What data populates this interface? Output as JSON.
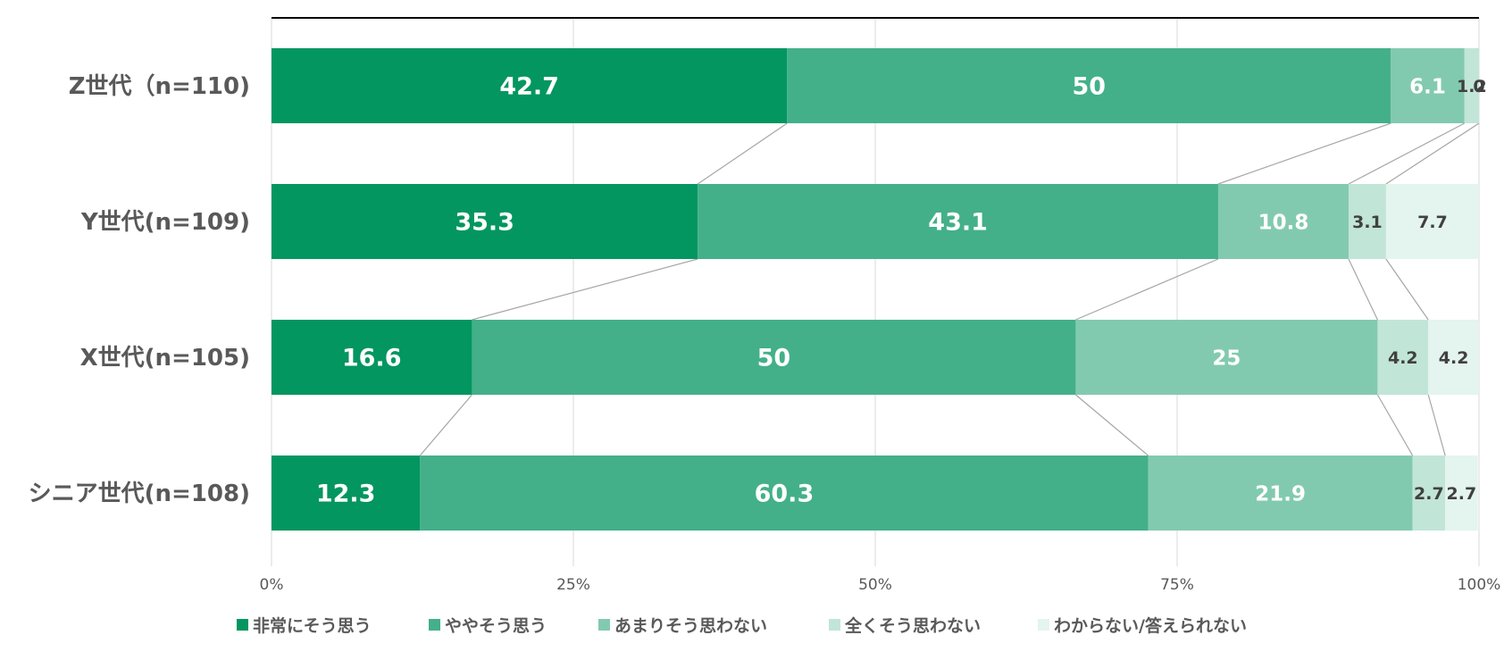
{
  "chart_data": {
    "type": "bar",
    "orientation": "horizontal",
    "stacked": "100%",
    "categories": [
      "Z世代（n=110)",
      "Y世代(n=109)",
      "X世代(n=105)",
      "シニア世代(n=108)"
    ],
    "series": [
      {
        "name": "非常にそう思う",
        "color": "#039660",
        "values": [
          42.7,
          35.3,
          16.6,
          12.3
        ]
      },
      {
        "name": "ややそう思う",
        "color": "#43b08a",
        "values": [
          50,
          43.1,
          50,
          60.3
        ]
      },
      {
        "name": "あまりそう思わない",
        "color": "#82caaf",
        "values": [
          6.1,
          10.8,
          25,
          21.9
        ]
      },
      {
        "name": "全くそう思わない",
        "color": "#c1e5d7",
        "values": [
          1.2,
          3.1,
          4.2,
          2.7
        ]
      },
      {
        "name": "わからない/答えられない",
        "color": "#e4f4ee",
        "values": [
          0,
          7.7,
          4.2,
          2.7
        ]
      }
    ],
    "data_labels": [
      [
        "42.7",
        "50",
        "6.1",
        "1.2",
        "0"
      ],
      [
        "35.3",
        "43.1",
        "10.8",
        "3.1",
        "7.7"
      ],
      [
        "16.6",
        "50",
        "25",
        "4.2",
        "4.2"
      ],
      [
        "12.3",
        "60.3",
        "21.9",
        "2.7",
        "2.7"
      ]
    ],
    "xlim": [
      0,
      100
    ],
    "x_ticks": [
      "0%",
      "25%",
      "50%",
      "75%",
      "100%"
    ],
    "grid": true,
    "series_lines": true,
    "legend_position": "bottom",
    "title": "",
    "xlabel": "",
    "ylabel": ""
  }
}
